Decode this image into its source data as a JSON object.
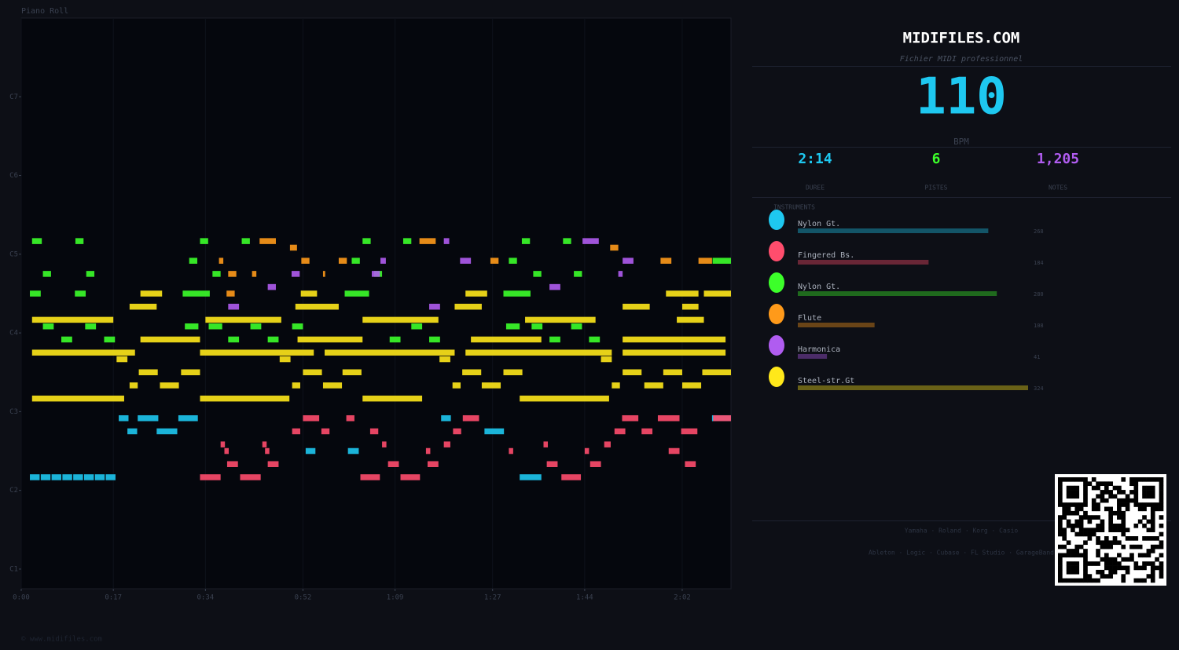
{
  "piano_roll": {
    "type": "piano-roll",
    "title": "Piano Roll",
    "xlim": [
      0,
      131
    ],
    "ylim": [
      21,
      108
    ],
    "xticks": [
      {
        "value": 0,
        "label": "0:00"
      },
      {
        "value": 17,
        "label": "0:17"
      },
      {
        "value": 34,
        "label": "0:34"
      },
      {
        "value": 52,
        "label": "0:52"
      },
      {
        "value": 69,
        "label": "1:09"
      },
      {
        "value": 87,
        "label": "1:27"
      },
      {
        "value": 104,
        "label": "1:44"
      },
      {
        "value": 122,
        "label": "2:02"
      }
    ],
    "yticks": [
      {
        "value": 24,
        "label": "C1"
      },
      {
        "value": 36,
        "label": "C2"
      },
      {
        "value": 48,
        "label": "C3"
      },
      {
        "value": 60,
        "label": "C4"
      },
      {
        "value": 72,
        "label": "C5"
      },
      {
        "value": 84,
        "label": "C6"
      },
      {
        "value": 96,
        "label": "C7"
      }
    ]
  },
  "header": {
    "title": "MIDIFILES.COM",
    "subtitle": "Fichier MIDI professionnel"
  },
  "stats": {
    "bpm": 110,
    "bpm_label": "BPM",
    "items": [
      {
        "value": "2:14",
        "label": "DUREE"
      },
      {
        "value": 6,
        "label": "PISTES"
      },
      {
        "value": "1,205",
        "label": "NOTES"
      }
    ]
  },
  "instruments": {
    "title": "INSTRUMENTS",
    "items": [
      {
        "name": "Nylon Gt.",
        "color": "#1ec8f0",
        "count": 268,
        "start": [
          1.6,
          3.6,
          5.6,
          7.6,
          9.6,
          11.6,
          13.6,
          15.6,
          18,
          21.5,
          29,
          77.5,
          127.5,
          19.6,
          25,
          85.5,
          52.5,
          60.3,
          92
        ],
        "duration": [
          1.8,
          1.8,
          1.8,
          1.8,
          1.8,
          1.8,
          1.8,
          1.8,
          1.8,
          3.8,
          3.6,
          1.8,
          3.5,
          1.8,
          3.8,
          3.6,
          1.8,
          2,
          4
        ],
        "pitch": [
          38,
          38,
          38,
          38,
          38,
          38,
          38,
          38,
          47,
          47,
          47,
          47,
          47,
          45,
          45,
          45,
          42,
          42,
          38
        ]
      },
      {
        "name": "Fingered Bs.",
        "color": "#ff4d6d",
        "count": 184,
        "start": [
          33,
          40.4,
          62.6,
          70,
          99.7,
          38,
          45.5,
          67.7,
          75,
          97,
          105,
          122.5,
          37.5,
          45,
          74.7,
          90,
          104,
          119.5,
          36.8,
          44.5,
          66.6,
          78,
          96.4,
          107.6,
          50,
          55.4,
          64.4,
          79.7,
          109.5,
          114.5,
          121.8,
          52,
          60,
          81.5,
          110.9,
          117.5,
          127.7
        ],
        "duration": [
          3.8,
          3.8,
          3.6,
          3.6,
          3.6,
          2,
          2,
          2,
          2,
          2,
          2,
          2,
          0.8,
          0.8,
          0.8,
          0.8,
          0.8,
          2,
          0.8,
          0.8,
          0.8,
          1.2,
          0.8,
          1.2,
          1.5,
          1.5,
          1.5,
          1.5,
          2,
          2,
          3,
          3,
          1.5,
          3,
          3,
          4,
          3.3
        ],
        "pitch": [
          38,
          38,
          38,
          38,
          38,
          40,
          40,
          40,
          40,
          40,
          40,
          40,
          42,
          42,
          42,
          42,
          42,
          42,
          43,
          43,
          43,
          43,
          43,
          43,
          45,
          45,
          45,
          45,
          45,
          45,
          45,
          47,
          47,
          47,
          47,
          47,
          47
        ]
      },
      {
        "name": "Nylon Gt.",
        "color": "#3cff2a",
        "count": 280,
        "start": [
          2,
          10,
          33,
          40.7,
          63,
          70.5,
          92.4,
          100,
          31,
          61,
          90,
          127.6,
          4,
          12,
          35.3,
          65.1,
          94.5,
          102,
          1.6,
          9.9,
          29.8,
          59.7,
          89,
          4,
          11.8,
          30.2,
          34.6,
          42.3,
          50,
          72,
          89.5,
          94.2,
          101.5,
          7.4,
          15.3,
          38.2,
          45.5,
          68,
          75.3,
          97.5,
          104.8
        ],
        "duration": [
          1.8,
          1.5,
          1.5,
          1.5,
          1.5,
          1.5,
          1.5,
          1.5,
          1.5,
          1.5,
          1.5,
          3.4,
          1.5,
          1.5,
          1.5,
          1.5,
          1.5,
          1.5,
          2,
          2,
          5,
          4.5,
          5,
          2,
          2,
          2.5,
          2.5,
          2,
          2,
          2,
          2.5,
          2,
          2,
          2,
          2,
          2,
          2,
          2,
          2,
          2,
          2
        ],
        "pitch": [
          74,
          74,
          74,
          74,
          74,
          74,
          74,
          74,
          71,
          71,
          71,
          71,
          69,
          69,
          69,
          69,
          69,
          69,
          66,
          66,
          66,
          66,
          66,
          61,
          61,
          61,
          61,
          61,
          61,
          61,
          61,
          61,
          61,
          59,
          59,
          59,
          59,
          59,
          59,
          59,
          59
        ]
      },
      {
        "name": "Flute",
        "color": "#ff9a1a",
        "count": 108,
        "start": [
          44,
          73.5,
          49.6,
          108.7,
          36.5,
          51.7,
          58.6,
          86.6,
          118,
          125,
          38.2,
          42.6,
          55.7,
          37.9
        ],
        "duration": [
          3,
          3,
          1.3,
          1.5,
          0.8,
          1.5,
          1.5,
          1.5,
          2,
          2.5,
          1.5,
          0.8,
          0.4,
          1.5
        ],
        "pitch": [
          74,
          74,
          73,
          73,
          71,
          71,
          71,
          71,
          71,
          71,
          69,
          69,
          69,
          66
        ]
      },
      {
        "name": "Harmonica",
        "color": "#b05cf0",
        "count": 41,
        "start": [
          103.6,
          78,
          66.3,
          81,
          111,
          49.9,
          64.7,
          110.2,
          45.5,
          97.5,
          38.2,
          75.3
        ],
        "duration": [
          3,
          1,
          1,
          2,
          2,
          1.5,
          1.5,
          0.8,
          1.5,
          2,
          2,
          2
        ],
        "pitch": [
          74,
          74,
          71,
          71,
          71,
          69,
          69,
          69,
          67,
          67,
          64,
          64
        ]
      },
      {
        "name": "Steel-str.Gt",
        "color": "#ffe81a",
        "count": 324,
        "start": [
          2,
          33,
          63,
          92,
          20,
          25.6,
          50,
          55.7,
          79.6,
          85,
          109,
          115,
          122,
          21.7,
          29.5,
          52,
          59.3,
          81.4,
          89,
          111,
          118.5,
          125.7,
          17.6,
          47.7,
          77.2,
          107,
          2,
          33,
          56,
          82,
          111,
          22,
          51,
          83,
          111,
          2,
          34,
          63,
          93,
          121,
          20,
          50.6,
          80,
          111,
          122,
          22,
          51.6,
          82,
          119,
          126
        ],
        "duration": [
          17,
          16.5,
          11,
          16.5,
          1.5,
          3.5,
          1.5,
          3.5,
          1.5,
          3.5,
          1.5,
          3.5,
          3.5,
          3.5,
          3.5,
          3.5,
          3.5,
          3.5,
          3.5,
          3.5,
          3.5,
          5.3,
          2,
          2,
          2,
          2,
          19,
          21,
          24,
          27,
          19,
          11,
          12,
          13,
          19,
          15,
          14,
          14,
          13,
          5,
          5,
          8,
          5,
          5,
          3,
          4,
          3,
          4,
          6,
          5
        ],
        "pitch": [
          50,
          50,
          50,
          50,
          52,
          52,
          52,
          52,
          52,
          52,
          52,
          52,
          52,
          54,
          54,
          54,
          54,
          54,
          54,
          54,
          54,
          54,
          56,
          56,
          56,
          56,
          57,
          57,
          57,
          57,
          57,
          59,
          59,
          59,
          59,
          62,
          62,
          62,
          62,
          62,
          64,
          64,
          64,
          64,
          64,
          66,
          66,
          66,
          66,
          66
        ]
      }
    ]
  },
  "footer": {
    "brands": "Yamaha · Roland · Korg · Casio",
    "daws": "Ableton · Logic · Cubase · FL Studio · GarageBand",
    "copyright": "© www.midifiles.com"
  }
}
